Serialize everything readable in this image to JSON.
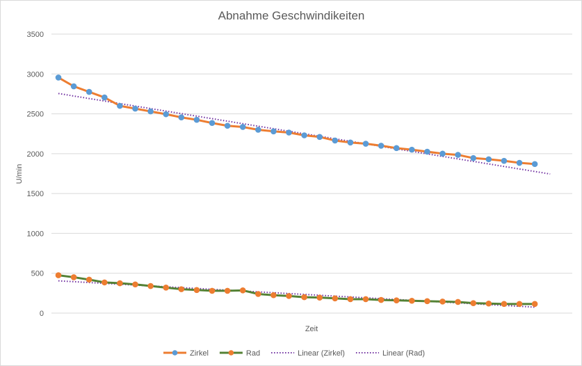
{
  "chart_data": {
    "type": "line",
    "title": "Abnahme Geschwindikeiten",
    "xlabel": "Zeit",
    "ylabel": "U/min",
    "ylim": [
      0,
      3500
    ],
    "yticks": [
      0,
      500,
      1000,
      1500,
      2000,
      2500,
      3000,
      3500
    ],
    "grid": true,
    "legend_position": "bottom",
    "x": [
      1,
      2,
      3,
      4,
      5,
      6,
      7,
      8,
      9,
      10,
      11,
      12,
      13,
      14,
      15,
      16,
      17,
      18,
      19,
      20,
      21,
      22,
      23,
      24,
      25,
      26,
      27,
      28,
      29,
      30,
      31,
      32
    ],
    "series": [
      {
        "name": "Zirkel",
        "color": "#ed7d31",
        "marker_color": "#5b9bd5",
        "values": [
          2955,
          2845,
          2775,
          2705,
          2600,
          2565,
          2530,
          2495,
          2455,
          2425,
          2385,
          2350,
          2335,
          2300,
          2280,
          2265,
          2230,
          2210,
          2165,
          2140,
          2125,
          2100,
          2070,
          2050,
          2025,
          2000,
          1985,
          1945,
          1930,
          1910,
          1885,
          1870
        ]
      },
      {
        "name": "Rad",
        "color": "#548235",
        "marker_color": "#ed7d31",
        "values": [
          475,
          450,
          420,
          385,
          375,
          360,
          340,
          320,
          300,
          290,
          280,
          280,
          285,
          240,
          225,
          215,
          200,
          195,
          185,
          175,
          175,
          165,
          160,
          155,
          150,
          145,
          140,
          125,
          120,
          115,
          115,
          115
        ]
      }
    ],
    "trendlines": [
      {
        "name": "Linear (Zirkel)",
        "of": "Zirkel",
        "color": "#7030a0",
        "start": 2755,
        "end": 1745,
        "x_end": 33
      },
      {
        "name": "Linear (Rad)",
        "of": "Rad",
        "color": "#7030a0",
        "start": 405,
        "end": 75,
        "x_end": 32
      }
    ]
  }
}
